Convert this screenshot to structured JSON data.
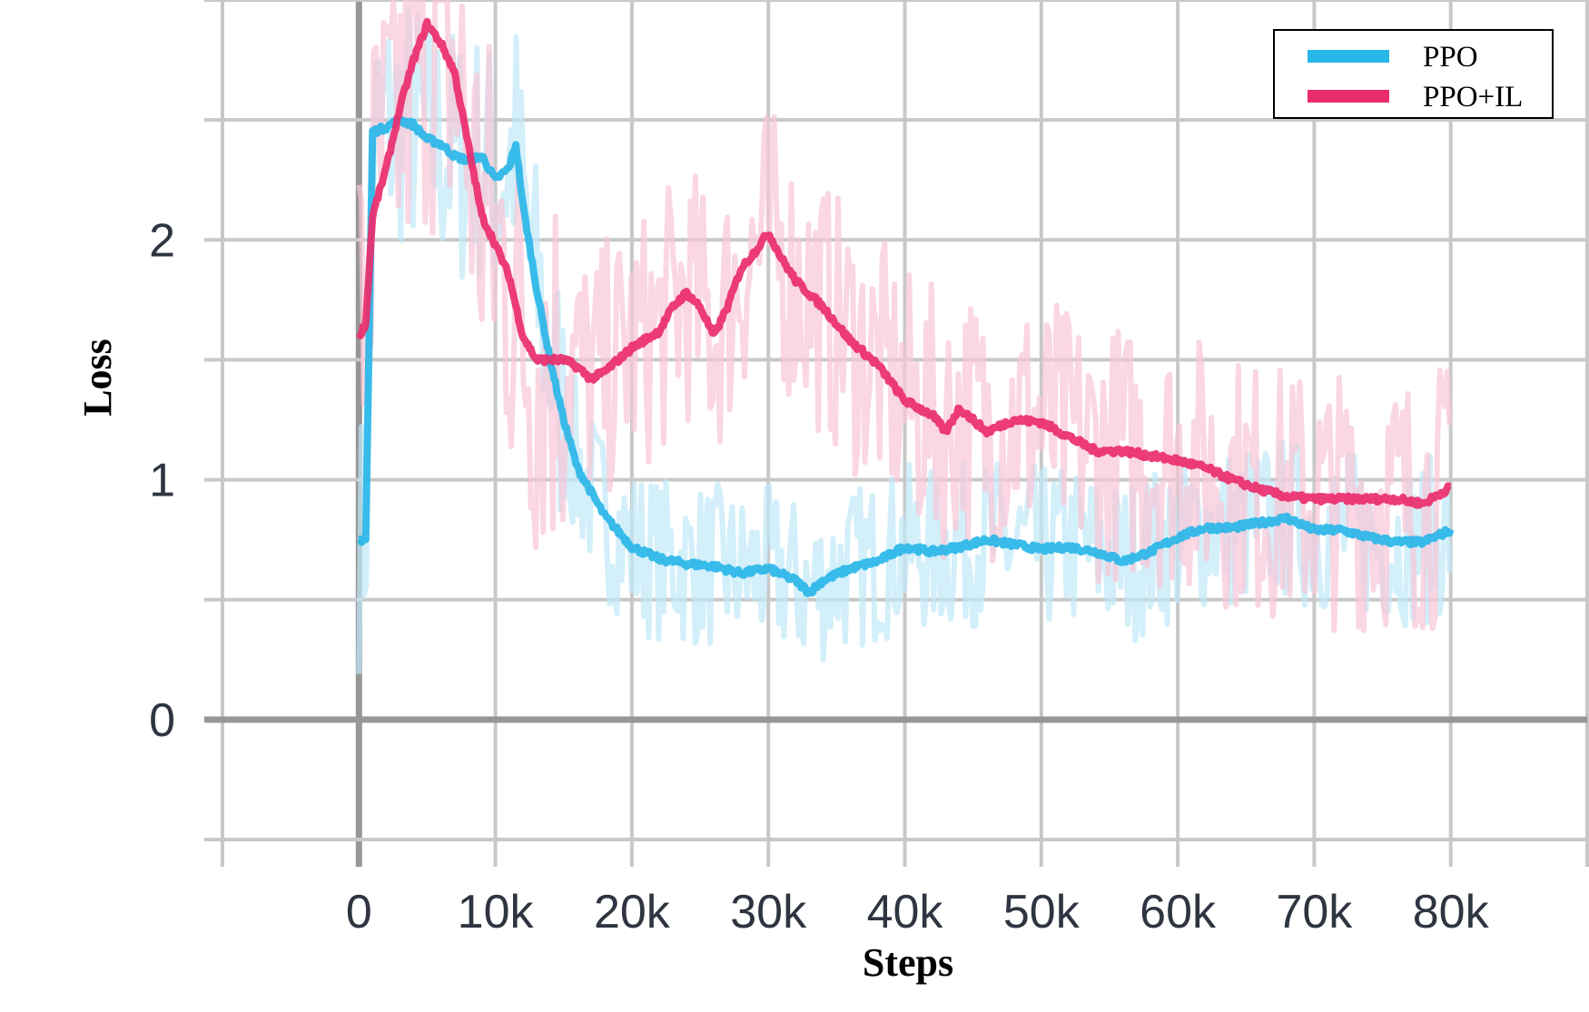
{
  "chart_data": {
    "type": "line",
    "title": "",
    "xlabel": "Steps",
    "ylabel": "Loss",
    "xlim": [
      -10000,
      90000
    ],
    "ylim": [
      -0.5,
      3.0
    ],
    "x_ticks": [
      0,
      10000,
      20000,
      30000,
      40000,
      50000,
      60000,
      70000,
      80000
    ],
    "x_tick_labels": [
      "0",
      "10k",
      "20k",
      "30k",
      "40k",
      "50k",
      "60k",
      "70k",
      "80k"
    ],
    "y_ticks": [
      0,
      1,
      2
    ],
    "y_tick_labels": [
      "0",
      "1",
      "2"
    ],
    "grid": true,
    "legend": "top-right",
    "series": [
      {
        "name": "PPO",
        "color": "#29b6e8",
        "raw_color": "#bfe8f8",
        "x": [
          0,
          500,
          1000,
          2000,
          3000,
          4000,
          5000,
          6000,
          7000,
          8000,
          9000,
          10000,
          11000,
          11500,
          12000,
          13000,
          14000,
          15000,
          16000,
          18000,
          20000,
          22000,
          24000,
          26000,
          28000,
          30000,
          32000,
          33000,
          34000,
          36000,
          38000,
          40000,
          42000,
          44000,
          46000,
          48000,
          50000,
          52000,
          54000,
          56000,
          58000,
          60000,
          62000,
          64000,
          66000,
          68000,
          70000,
          72000,
          74000,
          76000,
          78000,
          80000
        ],
        "values": [
          0.75,
          0.75,
          2.45,
          2.47,
          2.5,
          2.48,
          2.42,
          2.4,
          2.35,
          2.33,
          2.35,
          2.25,
          2.3,
          2.4,
          2.15,
          1.8,
          1.5,
          1.25,
          1.05,
          0.85,
          0.72,
          0.67,
          0.65,
          0.64,
          0.61,
          0.63,
          0.58,
          0.53,
          0.58,
          0.63,
          0.66,
          0.72,
          0.7,
          0.72,
          0.75,
          0.73,
          0.71,
          0.72,
          0.7,
          0.66,
          0.7,
          0.76,
          0.8,
          0.8,
          0.82,
          0.84,
          0.79,
          0.79,
          0.76,
          0.74,
          0.74,
          0.79
        ]
      },
      {
        "name": "PPO+IL",
        "color": "#ea2c6d",
        "raw_color": "#f8c6d6",
        "x": [
          0,
          500,
          1000,
          2000,
          3000,
          4000,
          5000,
          6000,
          7000,
          8000,
          9000,
          10000,
          11000,
          12000,
          13000,
          14000,
          15000,
          16000,
          17000,
          18000,
          20000,
          22000,
          23000,
          24000,
          25000,
          26000,
          27000,
          28000,
          29000,
          30000,
          31000,
          32000,
          34000,
          36000,
          38000,
          40000,
          42000,
          43000,
          44000,
          46000,
          48000,
          50000,
          52000,
          54000,
          56000,
          58000,
          60000,
          62000,
          64000,
          66000,
          68000,
          70000,
          72000,
          74000,
          76000,
          78000,
          80000
        ],
        "values": [
          1.6,
          1.65,
          2.1,
          2.3,
          2.55,
          2.75,
          2.9,
          2.82,
          2.7,
          2.4,
          2.1,
          1.98,
          1.85,
          1.6,
          1.5,
          1.5,
          1.5,
          1.47,
          1.42,
          1.45,
          1.55,
          1.62,
          1.72,
          1.78,
          1.72,
          1.6,
          1.72,
          1.88,
          1.95,
          2.03,
          1.92,
          1.83,
          1.72,
          1.58,
          1.48,
          1.33,
          1.27,
          1.2,
          1.3,
          1.2,
          1.25,
          1.24,
          1.18,
          1.12,
          1.12,
          1.1,
          1.08,
          1.05,
          1.0,
          0.96,
          0.93,
          0.92,
          0.92,
          0.92,
          0.92,
          0.9,
          0.97
        ]
      }
    ]
  }
}
